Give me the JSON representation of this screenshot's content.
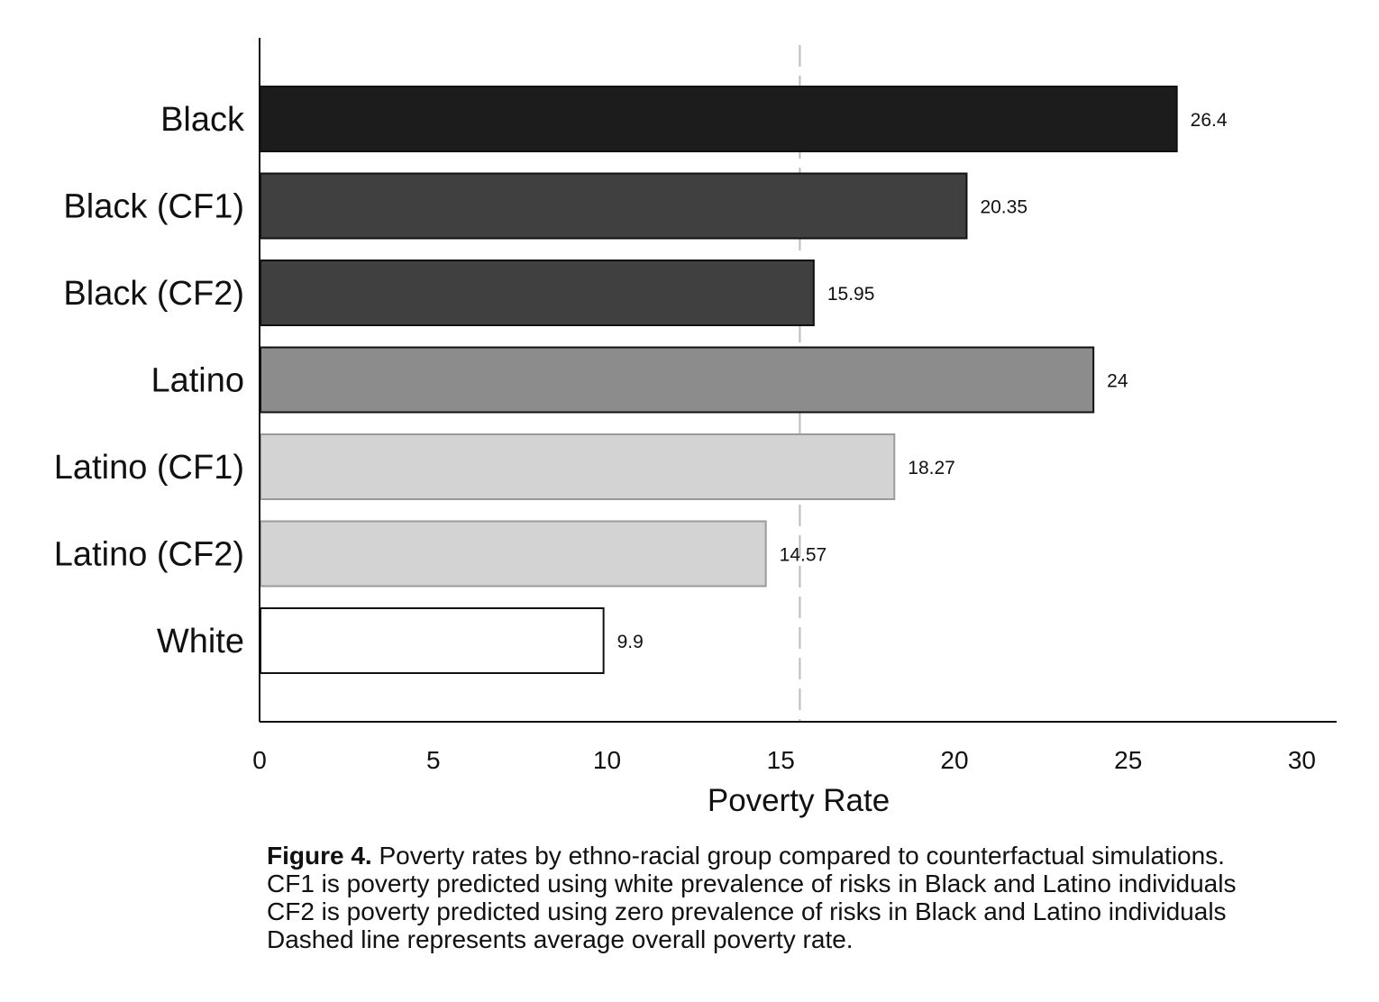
{
  "chart_data": {
    "type": "bar",
    "orientation": "horizontal",
    "categories": [
      "Black",
      "Black (CF1)",
      "Black (CF2)",
      "Latino",
      "Latino (CF1)",
      "Latino (CF2)",
      "White"
    ],
    "values": [
      26.4,
      20.35,
      15.95,
      24,
      18.27,
      14.57,
      9.9
    ],
    "value_labels": [
      "26.4",
      "20.35",
      "15.95",
      "24",
      "18.27",
      "14.57",
      "9.9"
    ],
    "bar_colors": [
      "#1c1c1c",
      "#404040",
      "#404040",
      "#8c8c8c",
      "#d3d3d3",
      "#d3d3d3",
      "#ffffff"
    ],
    "xlabel": "Poverty Rate",
    "ylabel": "",
    "xlim": [
      0,
      31
    ],
    "xticks": [
      0,
      5,
      10,
      15,
      20,
      25,
      30
    ],
    "xtick_labels": [
      "0",
      "5",
      "10",
      "15",
      "20",
      "25",
      "30"
    ],
    "reference_line": {
      "value": 15.55,
      "style": "dashed",
      "color": "#bbbbbb"
    },
    "grid": false,
    "legend": "none"
  },
  "caption": {
    "label": "Figure 4.",
    "title": " Poverty rates by ethno-racial group compared to counterfactual simulations.",
    "lines": [
      "CF1 is poverty predicted using white prevalence of risks in Black and Latino individuals",
      "CF2 is poverty predicted using zero prevalence of risks in Black and Latino individuals",
      "Dashed line represents average overall poverty rate."
    ]
  }
}
